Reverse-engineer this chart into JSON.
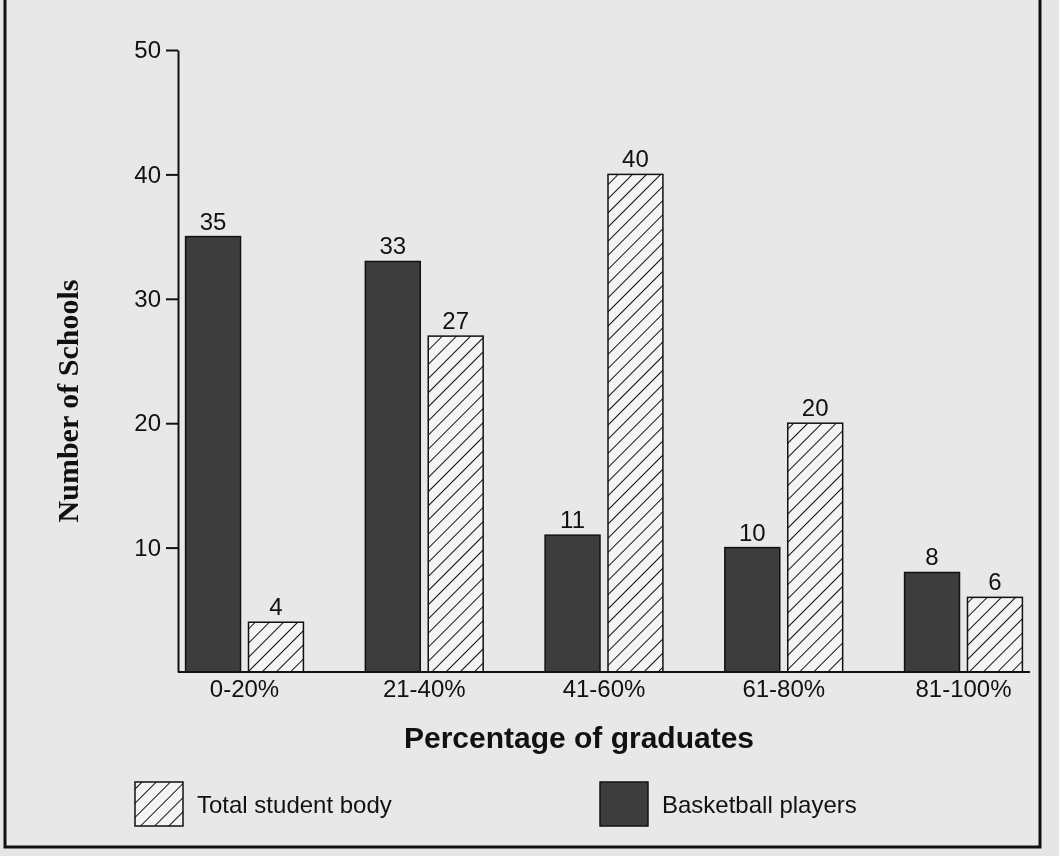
{
  "chart_data": {
    "type": "bar",
    "xlabel": "Percentage of graduates",
    "ylabel": "Number of Schools",
    "categories": [
      "0-20%",
      "21-40%",
      "41-60%",
      "61-80%",
      "81-100%"
    ],
    "series": [
      {
        "name": "Basketball players",
        "color": "#3d3d3d",
        "values": [
          35,
          33,
          11,
          10,
          8
        ]
      },
      {
        "name": "Total student body",
        "color": "#111111",
        "values": [
          4,
          27,
          40,
          20,
          6
        ]
      }
    ],
    "ylim": [
      0,
      50
    ],
    "yticks": [
      10,
      20,
      30,
      40,
      50
    ],
    "grid": false,
    "legend": "bottom",
    "data_labels": true
  }
}
